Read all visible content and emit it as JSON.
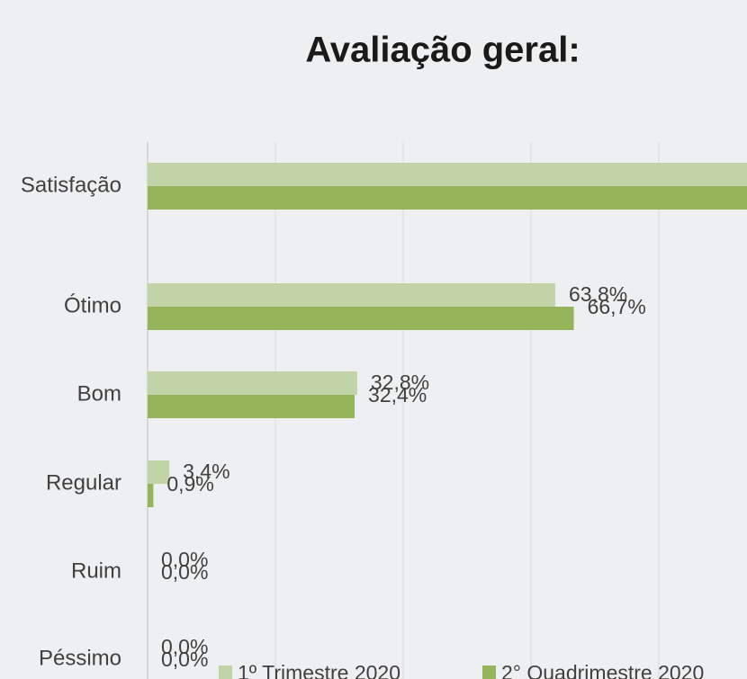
{
  "chart_data": {
    "type": "hbar",
    "title": "Avaliação geral:",
    "categories": [
      "Satisfação",
      "Ótimo",
      "Bom",
      "Regular",
      "Ruim",
      "Péssimo"
    ],
    "series": [
      {
        "name": "1º Trimestre 2020",
        "color": "#c3d3a8",
        "values": [
          96.6,
          63.8,
          32.8,
          3.4,
          0,
          0
        ],
        "value_labels": [
          null,
          "63,8%",
          "32,8%",
          "3,4%",
          "0,0%",
          "0,0%"
        ]
      },
      {
        "name": "2° Quadrimestre 2020",
        "color": "#96b55a",
        "values": [
          99.1,
          66.7,
          32.4,
          0.9,
          0,
          0
        ],
        "value_labels": [
          null,
          "66,7%",
          "32,4%",
          "0,9%",
          "0,0%",
          "0,0%"
        ]
      }
    ],
    "xlim": [
      0,
      100
    ],
    "xticks": [
      0,
      20,
      40,
      60,
      80,
      100
    ],
    "grid": true
  }
}
